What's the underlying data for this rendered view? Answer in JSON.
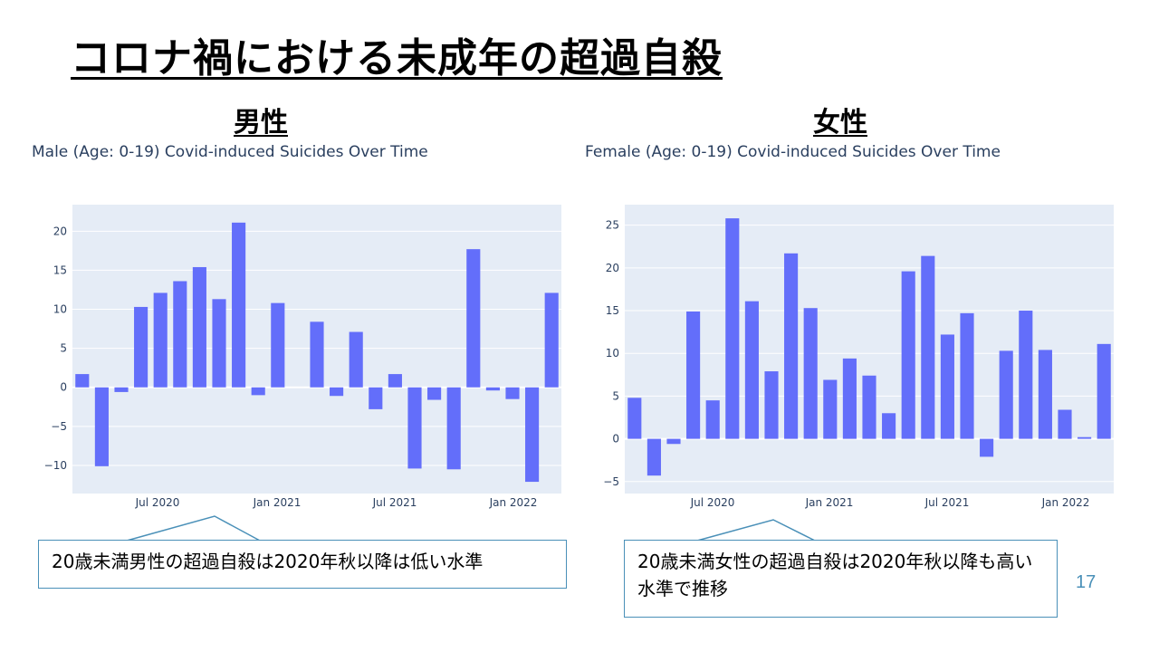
{
  "slide": {
    "title": "コロナ禍における未成年の超過自殺",
    "page_number": "17"
  },
  "panels": {
    "left": {
      "heading": "男性",
      "callout": "20歳未満男性の超過自殺は2020年秋以降は低い水準"
    },
    "right": {
      "heading": "女性",
      "callout": "20歳未満女性の超過自殺は2020年秋以降も高い水準で推移"
    }
  },
  "colors": {
    "bar": "#636efa",
    "plot_bg": "#e5ecf6",
    "grid": "#ffffff",
    "axis_text": "#2a3f5f",
    "callout_border": "#4a90b8"
  },
  "chart_data": [
    {
      "type": "bar",
      "title": "Male (Age: 0-19) Covid-induced Suicides Over Time",
      "x": [
        "2020-03",
        "2020-04",
        "2020-05",
        "2020-06",
        "2020-07",
        "2020-08",
        "2020-09",
        "2020-10",
        "2020-11",
        "2020-12",
        "2021-01",
        "2021-02",
        "2021-03",
        "2021-04",
        "2021-05",
        "2021-06",
        "2021-07",
        "2021-08",
        "2021-09",
        "2021-10",
        "2021-11",
        "2021-12",
        "2022-01",
        "2022-02",
        "2022-03"
      ],
      "values": [
        1.7,
        -10.1,
        -0.6,
        10.3,
        12.1,
        13.6,
        15.4,
        11.3,
        21.1,
        -1.0,
        10.8,
        0,
        8.4,
        -1.1,
        7.1,
        -2.8,
        1.7,
        -10.4,
        -1.6,
        -10.5,
        17.7,
        -0.4,
        -1.5,
        -12.1,
        12.1
      ],
      "xticks": [
        "Jul 2020",
        "Jan 2021",
        "Jul 2021",
        "Jan 2022"
      ],
      "yticks": [
        "20",
        "15",
        "10",
        "5",
        "0",
        "−5",
        "−10"
      ],
      "ylim": [
        -13.6,
        23.4
      ],
      "xlabel": "",
      "ylabel": "",
      "grid": true
    },
    {
      "type": "bar",
      "title": "Female (Age: 0-19) Covid-induced Suicides Over Time",
      "x": [
        "2020-03",
        "2020-04",
        "2020-05",
        "2020-06",
        "2020-07",
        "2020-08",
        "2020-09",
        "2020-10",
        "2020-11",
        "2020-12",
        "2021-01",
        "2021-02",
        "2021-03",
        "2021-04",
        "2021-05",
        "2021-06",
        "2021-07",
        "2021-08",
        "2021-09",
        "2021-10",
        "2021-11",
        "2021-12",
        "2022-01",
        "2022-02",
        "2022-03"
      ],
      "values": [
        4.8,
        -4.3,
        -0.6,
        14.9,
        4.5,
        25.8,
        16.1,
        7.9,
        21.7,
        15.3,
        6.9,
        9.4,
        7.4,
        3.0,
        19.6,
        21.4,
        12.2,
        14.7,
        -2.1,
        10.3,
        15.0,
        10.4,
        3.4,
        0.2,
        11.1
      ],
      "xticks": [
        "Jul 2020",
        "Jan 2021",
        "Jul 2021",
        "Jan 2022"
      ],
      "yticks": [
        "25",
        "20",
        "15",
        "10",
        "5",
        "0",
        "−5"
      ],
      "ylim": [
        -6.4,
        27.4
      ],
      "xlabel": "",
      "ylabel": "",
      "grid": true
    }
  ]
}
